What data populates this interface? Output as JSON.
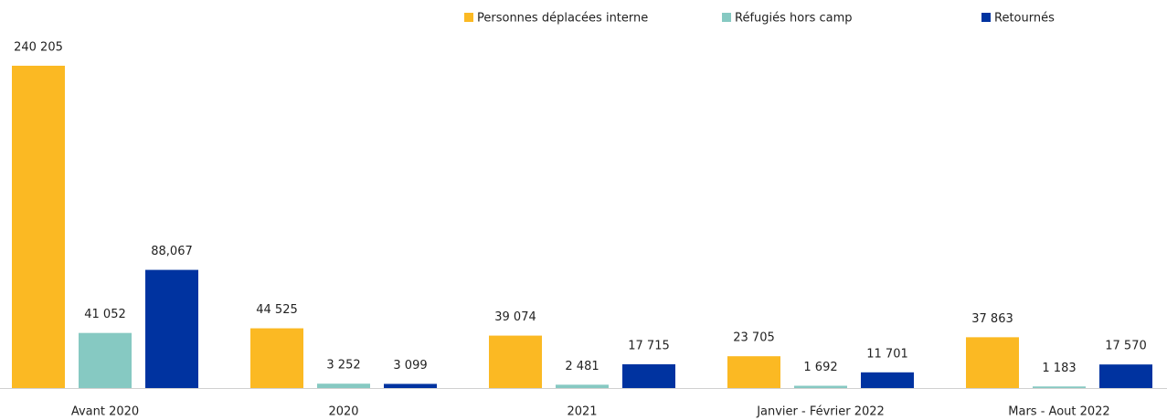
{
  "chart_data": {
    "type": "bar",
    "categories": [
      "Avant 2020",
      "2020",
      "2021",
      "Janvier - Février 2022",
      "Mars - Aout 2022"
    ],
    "series": [
      {
        "name": "Personnes déplacées interne",
        "color": "#fbb923",
        "values": [
          240205,
          44525,
          39074,
          23705,
          37863
        ],
        "value_labels": [
          "240 205",
          "44 525",
          "39 074",
          "23 705",
          "37 863"
        ]
      },
      {
        "name": "Réfugiés hors camp",
        "color": "#86c9c2",
        "values": [
          41052,
          3252,
          2481,
          1692,
          1183
        ],
        "value_labels": [
          "41 052",
          "3 252",
          "2 481",
          "1 692",
          "1 183"
        ]
      },
      {
        "name": "Retournés",
        "color": "#0033a0",
        "values": [
          88067,
          3099,
          17715,
          11701,
          17570
        ],
        "value_labels": [
          "88,067",
          "3 099",
          "17 715",
          "11 701",
          "17 570"
        ]
      }
    ],
    "legend": "top"
  }
}
